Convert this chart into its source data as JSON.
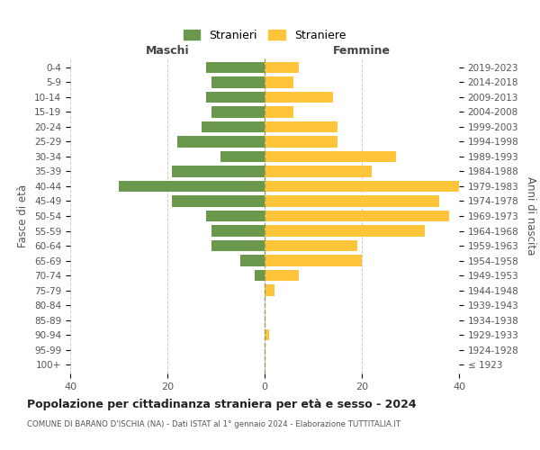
{
  "age_groups": [
    "100+",
    "95-99",
    "90-94",
    "85-89",
    "80-84",
    "75-79",
    "70-74",
    "65-69",
    "60-64",
    "55-59",
    "50-54",
    "45-49",
    "40-44",
    "35-39",
    "30-34",
    "25-29",
    "20-24",
    "15-19",
    "10-14",
    "5-9",
    "0-4"
  ],
  "birth_years": [
    "≤ 1923",
    "1924-1928",
    "1929-1933",
    "1934-1938",
    "1939-1943",
    "1944-1948",
    "1949-1953",
    "1954-1958",
    "1959-1963",
    "1964-1968",
    "1969-1973",
    "1974-1978",
    "1979-1983",
    "1984-1988",
    "1989-1993",
    "1994-1998",
    "1999-2003",
    "2004-2008",
    "2009-2013",
    "2014-2018",
    "2019-2023"
  ],
  "maschi": [
    0,
    0,
    0,
    0,
    0,
    0,
    2,
    5,
    11,
    11,
    12,
    19,
    30,
    19,
    9,
    18,
    13,
    11,
    12,
    11,
    12
  ],
  "femmine": [
    0,
    0,
    1,
    0,
    0,
    2,
    7,
    20,
    19,
    33,
    38,
    36,
    40,
    22,
    27,
    15,
    15,
    6,
    14,
    6,
    7
  ],
  "maschi_color": "#6a994e",
  "femmine_color": "#ffc53a",
  "background_color": "#ffffff",
  "grid_color": "#cccccc",
  "title": "Popolazione per cittadinanza straniera per età e sesso - 2024",
  "subtitle": "COMUNE DI BARANO D'ISCHIA (NA) - Dati ISTAT al 1° gennaio 2024 - Elaborazione TUTTITALIA.IT",
  "ylabel_left": "Fasce di età",
  "ylabel_right": "Anni di nascita",
  "xlabel_left": "Maschi",
  "xlabel_right": "Femmine",
  "legend_maschi": "Stranieri",
  "legend_femmine": "Straniere",
  "xlim": 40
}
